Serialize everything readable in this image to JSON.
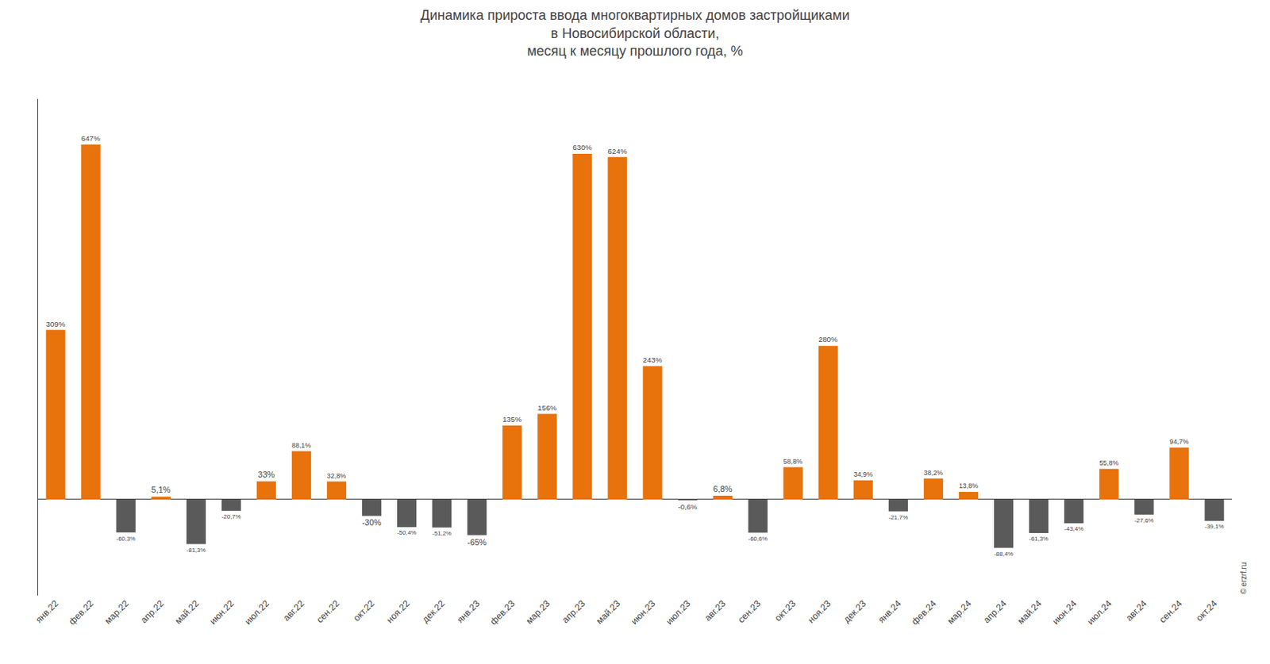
{
  "chart_data": {
    "type": "bar",
    "title": "Динамика прироста ввода многоквартирных домов застройщиками\nв Новосибирской области,\nмесяц к месяцу прошлого года, %",
    "categories": [
      "янв.22",
      "фев.22",
      "мар.22",
      "апр.22",
      "май.22",
      "июн.22",
      "июл.22",
      "авг.22",
      "сен.22",
      "окт.22",
      "ноя.22",
      "дек.22",
      "янв.23",
      "фев.23",
      "мар.23",
      "апр.23",
      "май.23",
      "июн.23",
      "июл.23",
      "авг.23",
      "сен.23",
      "окт.23",
      "ноя.23",
      "дек.23",
      "янв.24",
      "фев.24",
      "мар.24",
      "апр.24",
      "май.24",
      "июн.24",
      "июл.24",
      "авг.24",
      "сен.24",
      "окт.24"
    ],
    "values": [
      309,
      647,
      -60.3,
      5.1,
      -81.3,
      -20.7,
      33.0,
      88.1,
      32.8,
      -30.0,
      -50.4,
      -51.2,
      -65.0,
      135,
      156,
      630,
      624,
      243,
      -0.6,
      6.8,
      -60.6,
      58.8,
      280,
      34.9,
      -21.7,
      38.2,
      13.8,
      -88.4,
      -61.3,
      -43.4,
      55.8,
      -27.6,
      94.7,
      -39.1
    ],
    "value_labels": [
      "309%",
      "647%",
      "-60,3%",
      "5,1%",
      "-81,3%",
      "-20,7%",
      "33%",
      "88,1%",
      "32,8%",
      "-30%",
      "-50,4%",
      "-51,2%",
      "-65%",
      "135%",
      "156%",
      "630%",
      "624%",
      "243%",
      "-0,6%",
      "6,8%",
      "-60,6%",
      "58,8%",
      "280%",
      "34,9%",
      "-21,7%",
      "38,2%",
      "13,8%",
      "-88,4%",
      "-61,3%",
      "-43,4%",
      "55,8%",
      "-27,6%",
      "94,7%",
      "-39,1%"
    ],
    "colors": [
      "#E8720C",
      "#E8720C",
      "#5A5A5A",
      "#E8720C",
      "#5A5A5A",
      "#5A5A5A",
      "#E8720C",
      "#E8720C",
      "#E8720C",
      "#5A5A5A",
      "#5A5A5A",
      "#5A5A5A",
      "#5A5A5A",
      "#E8720C",
      "#E8720C",
      "#E8720C",
      "#E8720C",
      "#E8720C",
      "#5A5A5A",
      "#E8720C",
      "#5A5A5A",
      "#E8720C",
      "#E8720C",
      "#E8720C",
      "#5A5A5A",
      "#E8720C",
      "#E8720C",
      "#5A5A5A",
      "#5A5A5A",
      "#5A5A5A",
      "#E8720C",
      "#5A5A5A",
      "#E8720C",
      "#5A5A5A"
    ],
    "ylim": [
      -175,
      730
    ],
    "grid": false,
    "data_labels": true,
    "tick_labels": "x",
    "annotations": [
      "© erzrf.ru"
    ]
  }
}
